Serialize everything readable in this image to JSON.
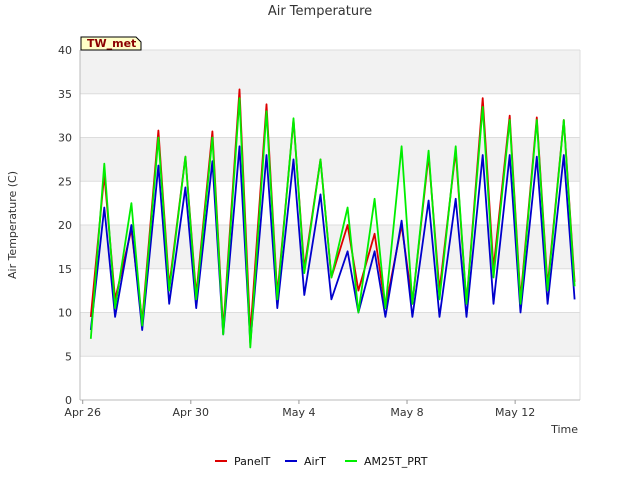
{
  "chart_data": {
    "type": "line",
    "title": "Air Temperature",
    "xlabel": "Time",
    "ylabel": "Air Temperature (C)",
    "badge": "TW_met",
    "ylim": [
      0,
      40
    ],
    "yticks": [
      0,
      5,
      10,
      15,
      20,
      25,
      30,
      35,
      40
    ],
    "xlim_days": [
      -0.1,
      18.4
    ],
    "xticks": [
      {
        "label": "Apr 26",
        "day": 0
      },
      {
        "label": "Apr 30",
        "day": 4
      },
      {
        "label": "May 4",
        "day": 8
      },
      {
        "label": "May 8",
        "day": 12
      },
      {
        "label": "May 12",
        "day": 16
      }
    ],
    "grid": true,
    "legend_position": "bottom",
    "x_unit": "day offset from Apr 26 (daily min/max samples)",
    "series": [
      {
        "name": "PanelT",
        "color": "#dd0000",
        "x": [
          0.3,
          0.8,
          1.2,
          1.8,
          2.2,
          2.8,
          3.2,
          3.8,
          4.2,
          4.8,
          5.2,
          5.8,
          6.2,
          6.8,
          7.2,
          7.8,
          8.2,
          8.8,
          9.2,
          9.8,
          10.2,
          10.8,
          11.2,
          11.8,
          12.2,
          12.8,
          13.2,
          13.8,
          14.2,
          14.8,
          15.2,
          15.8,
          16.2,
          16.8,
          17.2,
          17.8,
          18.2
        ],
        "values": [
          9.5,
          25.8,
          11.5,
          19.5,
          9.0,
          30.8,
          13.0,
          27.8,
          12.0,
          30.7,
          8.0,
          35.5,
          7.5,
          33.8,
          12.0,
          32.0,
          15.0,
          27.5,
          14.0,
          20.0,
          12.5,
          19.0,
          10.5,
          20.0,
          11.0,
          28.0,
          12.5,
          28.5,
          11.0,
          34.5,
          15.0,
          32.5,
          11.5,
          32.3,
          13.0,
          32.0,
          13.5
        ]
      },
      {
        "name": "AirT",
        "color": "#0000cc",
        "x": [
          0.3,
          0.8,
          1.2,
          1.8,
          2.2,
          2.8,
          3.2,
          3.8,
          4.2,
          4.8,
          5.2,
          5.8,
          6.2,
          6.8,
          7.2,
          7.8,
          8.2,
          8.8,
          9.2,
          9.8,
          10.2,
          10.8,
          11.2,
          11.8,
          12.2,
          12.8,
          13.2,
          13.8,
          14.2,
          14.8,
          15.2,
          15.8,
          16.2,
          16.8,
          17.2,
          17.8,
          18.2
        ],
        "values": [
          8.0,
          22.0,
          9.5,
          20.0,
          8.0,
          26.8,
          11.0,
          24.3,
          10.5,
          27.3,
          7.5,
          29.0,
          6.5,
          28.0,
          10.5,
          27.5,
          12.0,
          23.5,
          11.5,
          17.0,
          10.0,
          17.0,
          9.5,
          20.5,
          9.5,
          22.8,
          9.5,
          23.0,
          9.5,
          28.0,
          11.0,
          28.0,
          10.0,
          27.8,
          11.0,
          28.0,
          11.5
        ]
      },
      {
        "name": "AM25T_PRT",
        "color": "#00ee00",
        "x": [
          0.3,
          0.8,
          1.2,
          1.8,
          2.2,
          2.8,
          3.2,
          3.8,
          4.2,
          4.8,
          5.2,
          5.8,
          6.2,
          6.8,
          7.2,
          7.8,
          8.2,
          8.8,
          9.2,
          9.8,
          10.2,
          10.8,
          11.2,
          11.8,
          12.2,
          12.8,
          13.2,
          13.8,
          14.2,
          14.8,
          15.2,
          15.8,
          16.2,
          16.8,
          17.2,
          17.8,
          18.2
        ],
        "values": [
          7.0,
          27.0,
          10.5,
          22.5,
          8.5,
          30.0,
          12.5,
          27.8,
          11.5,
          30.0,
          7.5,
          34.5,
          6.0,
          33.0,
          11.5,
          32.2,
          14.5,
          27.5,
          14.0,
          22.0,
          10.0,
          23.0,
          10.5,
          29.0,
          11.0,
          28.5,
          11.5,
          29.0,
          11.0,
          33.5,
          14.0,
          32.0,
          11.0,
          32.0,
          12.5,
          32.0,
          13.0
        ]
      }
    ]
  }
}
